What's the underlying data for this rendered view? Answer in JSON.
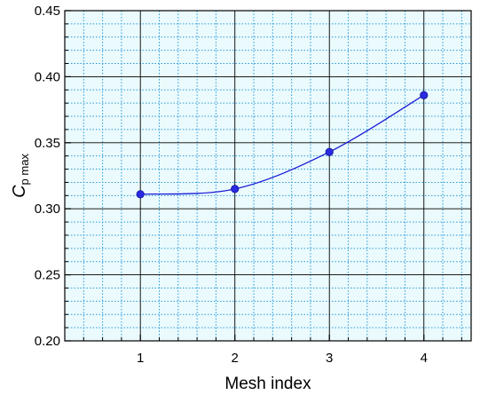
{
  "chart_data": {
    "type": "line",
    "title": "",
    "xlabel": "Mesh  index",
    "ylabel": {
      "main": "C",
      "sub": "p max"
    },
    "x": [
      1,
      2,
      3,
      4
    ],
    "series": [
      {
        "values": [
          0.311,
          0.315,
          0.343,
          0.386
        ]
      }
    ],
    "xlim": [
      0.2,
      4.5
    ],
    "ylim": [
      0.2,
      0.45
    ],
    "xticks": [
      1,
      2,
      3,
      4
    ],
    "xtick_labels": [
      "1",
      "2",
      "3",
      "4"
    ],
    "yticks": [
      0.2,
      0.25,
      0.3,
      0.35,
      0.4,
      0.45
    ],
    "ytick_labels": [
      "0.20",
      "0.25",
      "0.30",
      "0.35",
      "0.40",
      "0.45"
    ],
    "grid": true,
    "minor_grid": true,
    "legend": "none",
    "colors": {
      "series": "#1a1ad6",
      "marker_fill": "#2a2ae0",
      "background": "#eafafd",
      "major_grid": "#000000",
      "minor_grid": "#2f9bd8"
    }
  }
}
